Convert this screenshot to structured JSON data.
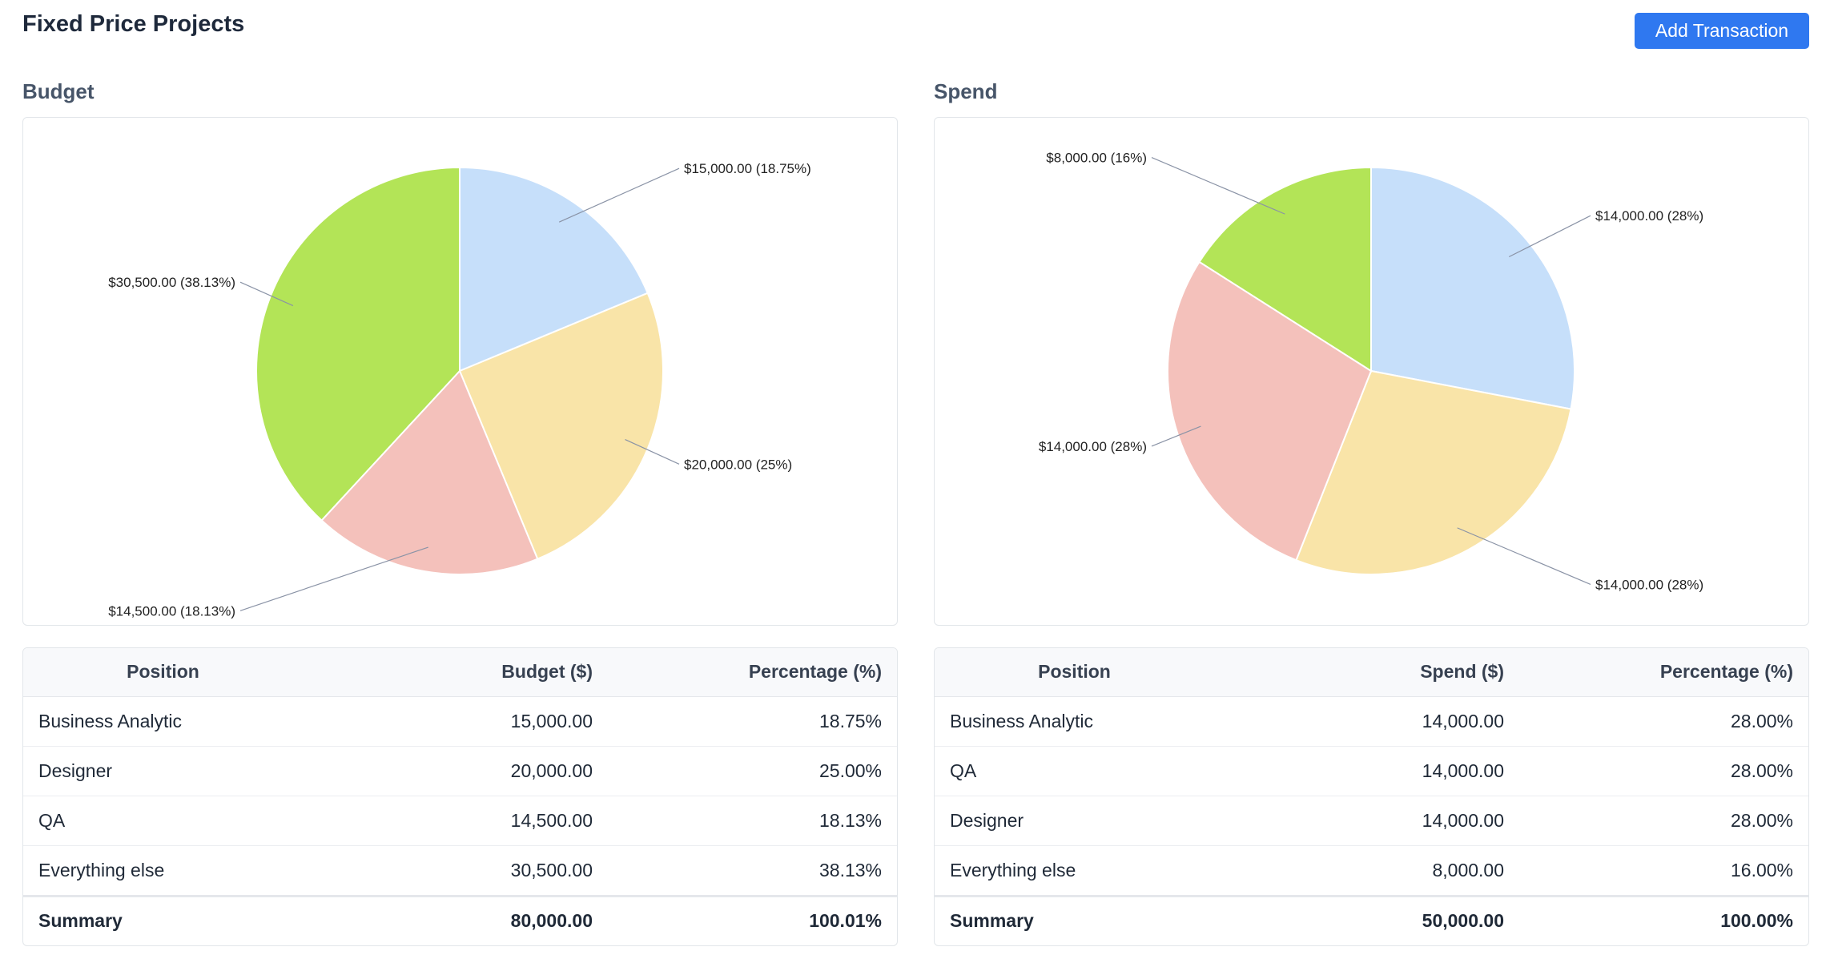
{
  "header": {
    "title": "Fixed Price Projects",
    "add_button_label": "Add Transaction"
  },
  "budget": {
    "section_title": "Budget",
    "columns": [
      "Position",
      "Budget ($)",
      "Percentage (%)"
    ],
    "rows": [
      [
        "Business Analytic",
        "15,000.00",
        "18.75%"
      ],
      [
        "Designer",
        "20,000.00",
        "25.00%"
      ],
      [
        "QA",
        "14,500.00",
        "18.13%"
      ],
      [
        "Everything else",
        "30,500.00",
        "38.13%"
      ]
    ],
    "summary": [
      "Summary",
      "80,000.00",
      "100.01%"
    ]
  },
  "spend": {
    "section_title": "Spend",
    "columns": [
      "Position",
      "Spend ($)",
      "Percentage (%)"
    ],
    "rows": [
      [
        "Business Analytic",
        "14,000.00",
        "28.00%"
      ],
      [
        "QA",
        "14,000.00",
        "28.00%"
      ],
      [
        "Designer",
        "14,000.00",
        "28.00%"
      ],
      [
        "Everything else",
        "8,000.00",
        "16.00%"
      ]
    ],
    "summary": [
      "Summary",
      "50,000.00",
      "100.00%"
    ]
  },
  "colors": {
    "accent": "#2f78f0",
    "slice_blue": "#c6dffa",
    "slice_yellow": "#f9e4a8",
    "slice_pink": "#f4c1bb",
    "slice_green": "#b3e457"
  },
  "chart_data": [
    {
      "type": "pie",
      "title": "Budget",
      "categories": [
        "Business Analytic",
        "Designer",
        "QA",
        "Everything else"
      ],
      "values": [
        15000,
        20000,
        14500,
        30500
      ],
      "labels": [
        "$15,000.00 (18.75%)",
        "$20,000.00 (25%)",
        "$14,500.00 (18.13%)",
        "$30,500.00 (38.13%)"
      ],
      "colors": [
        "#c6dffa",
        "#f9e4a8",
        "#f4c1bb",
        "#b3e457"
      ]
    },
    {
      "type": "pie",
      "title": "Spend",
      "categories": [
        "Business Analytic",
        "Designer",
        "QA",
        "Everything else"
      ],
      "values": [
        14000,
        14000,
        14000,
        8000
      ],
      "labels": [
        "$14,000.00 (28%)",
        "$14,000.00 (28%)",
        "$14,000.00 (28%)",
        "$8,000.00 (16%)"
      ],
      "colors": [
        "#c6dffa",
        "#f9e4a8",
        "#f4c1bb",
        "#b3e457"
      ]
    }
  ]
}
